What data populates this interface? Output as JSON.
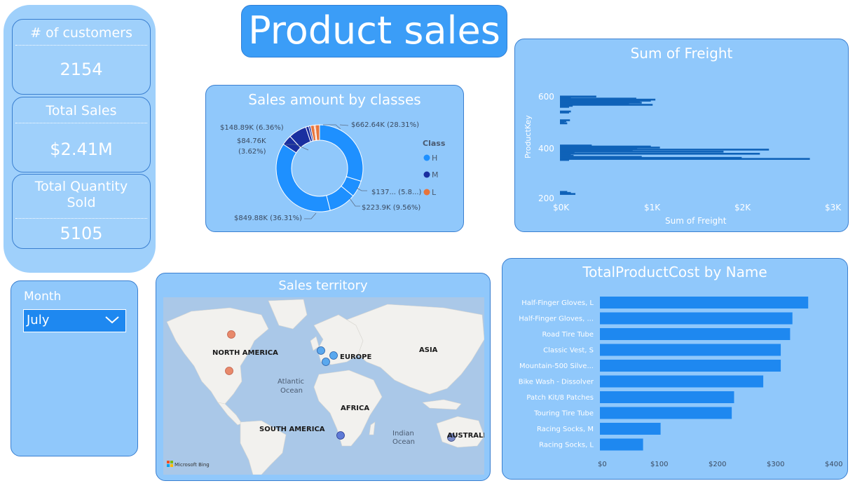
{
  "page_title": "Product sales",
  "kpis": {
    "customers": {
      "label": "# of customers",
      "value": "2154"
    },
    "total_sales": {
      "label": "Total Sales",
      "value": "$2.41M"
    },
    "quantity": {
      "label": "Total Quantity Sold",
      "value": "5105"
    }
  },
  "slicer": {
    "label": "Month",
    "selected": "July",
    "chevron_icon": "chevron-down-icon"
  },
  "donut": {
    "title": "Sales amount by classes",
    "legend_title": "Class",
    "legend": [
      {
        "name": "H",
        "color": "#1e90ff"
      },
      {
        "name": "M",
        "color": "#1a2fa0"
      },
      {
        "name": "L",
        "color": "#e8743b"
      }
    ],
    "labels": {
      "l1": "$662.64K (28.31%)",
      "l2": "$148.89K (6.36%)",
      "l3": "$84.76K",
      "l3b": "(3.62%)",
      "l4": "$137... (5.8...)",
      "l5": "$223.9K (9.56%)",
      "l6": "$849.88K (36.31%)"
    }
  },
  "freight": {
    "title": "Sum of Freight",
    "xlabel": "Sum of Freight",
    "ylabel": "ProductKey",
    "xticks": [
      "$0K",
      "$1K",
      "$2K",
      "$3K"
    ],
    "yticks": [
      "600",
      "400",
      "200"
    ]
  },
  "map": {
    "title": "Sales territory",
    "labels": {
      "na": "NORTH AMERICA",
      "europe": "EUROPE",
      "asia": "ASIA",
      "atlantic1": "Atlantic",
      "atlantic2": "Ocean",
      "africa": "AFRICA",
      "sa": "SOUTH AMERICA",
      "indian1": "Indian",
      "indian2": "Ocean",
      "australia": "AUSTRALI",
      "bing": "Microsoft Bing"
    }
  },
  "cost": {
    "title": "TotalProductCost by Name",
    "xticks": [
      "$0",
      "$100",
      "$200",
      "$300",
      "$400"
    ]
  },
  "chart_data": [
    {
      "type": "pie",
      "title": "Sales amount by classes",
      "legend_title": "Class",
      "slices": [
        {
          "label": "$662.64K (28.31%)",
          "value": 662.64,
          "class": "H"
        },
        {
          "label": "$137... (5.8...)",
          "value": 137,
          "class": "H"
        },
        {
          "label": "$223.9K (9.56%)",
          "value": 223.9,
          "class": "H"
        },
        {
          "label": "$849.88K (36.31%)",
          "value": 849.88,
          "class": "H"
        },
        {
          "label": "$84.76K (3.62%)",
          "value": 84.76,
          "class": "M"
        },
        {
          "label": "$148.89K (6.36%)",
          "value": 148.89,
          "class": "M"
        },
        {
          "label": "",
          "value": 25,
          "class": "M"
        },
        {
          "label": "",
          "value": 15,
          "class": "M"
        },
        {
          "label": "",
          "value": 30,
          "class": "L"
        },
        {
          "label": "",
          "value": 10,
          "class": "L"
        },
        {
          "label": "",
          "value": 35,
          "class": "L"
        }
      ]
    },
    {
      "type": "bar",
      "orientation": "horizontal",
      "title": "Sum of Freight",
      "xlabel": "Sum of Freight",
      "ylabel": "ProductKey",
      "xlim": [
        0,
        3000
      ],
      "ylim": [
        200,
        640
      ],
      "bars": [
        {
          "y": 600,
          "x": 400
        },
        {
          "y": 596,
          "x": 120
        },
        {
          "y": 592,
          "x": 840
        },
        {
          "y": 588,
          "x": 1050
        },
        {
          "y": 584,
          "x": 1000
        },
        {
          "y": 580,
          "x": 880
        },
        {
          "y": 576,
          "x": 900
        },
        {
          "y": 572,
          "x": 760
        },
        {
          "y": 568,
          "x": 1020
        },
        {
          "y": 564,
          "x": 140
        },
        {
          "y": 560,
          "x": 100
        },
        {
          "y": 542,
          "x": 120
        },
        {
          "y": 538,
          "x": 100
        },
        {
          "y": 508,
          "x": 110
        },
        {
          "y": 504,
          "x": 70
        },
        {
          "y": 500,
          "x": 50
        },
        {
          "y": 496,
          "x": 80
        },
        {
          "y": 410,
          "x": 350
        },
        {
          "y": 406,
          "x": 1000
        },
        {
          "y": 402,
          "x": 1100
        },
        {
          "y": 398,
          "x": 850
        },
        {
          "y": 394,
          "x": 2300
        },
        {
          "y": 390,
          "x": 800
        },
        {
          "y": 386,
          "x": 1800
        },
        {
          "y": 382,
          "x": 160
        },
        {
          "y": 378,
          "x": 2200
        },
        {
          "y": 374,
          "x": 120
        },
        {
          "y": 370,
          "x": 150
        },
        {
          "y": 366,
          "x": 900
        },
        {
          "y": 362,
          "x": 2000
        },
        {
          "y": 358,
          "x": 2750
        },
        {
          "y": 354,
          "x": 100
        },
        {
          "y": 230,
          "x": 80
        },
        {
          "y": 226,
          "x": 120
        },
        {
          "y": 222,
          "x": 170
        }
      ]
    },
    {
      "type": "bar",
      "orientation": "horizontal",
      "title": "TotalProductCost by Name",
      "xlim": [
        0,
        400
      ],
      "categories": [
        "Half-Finger Gloves, L",
        "Half-Finger Gloves, ...",
        "Road Tire Tube",
        "Classic Vest, S",
        "Mountain-500 Silve...",
        "Bike Wash - Dissolver",
        "Patch Kit/8 Patches",
        "Touring Tire Tube",
        "Racing Socks, M",
        "Racing Socks, L"
      ],
      "values": [
        357,
        330,
        326,
        310,
        310,
        280,
        230,
        226,
        104,
        74
      ]
    }
  ]
}
